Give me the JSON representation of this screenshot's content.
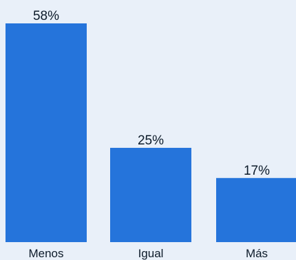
{
  "chart_data": {
    "type": "bar",
    "categories": [
      "Menos",
      "Igual",
      "Más"
    ],
    "values": [
      58,
      25,
      17
    ],
    "data_labels": [
      "58%",
      "25%",
      "17%"
    ],
    "title": "",
    "xlabel": "",
    "ylabel": "",
    "ylim": [
      0,
      58
    ],
    "grid": false,
    "legend": "none",
    "bar_color": "#2574db",
    "label_color": "#0d1b2a",
    "background_color": "#e9f0f9"
  }
}
